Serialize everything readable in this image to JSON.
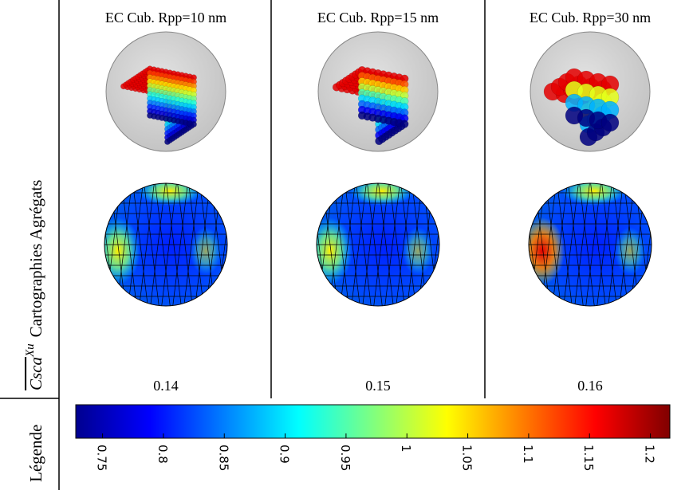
{
  "columns": [
    {
      "header": "EC Cub. Rpp=10 nm",
      "value": 0.14
    },
    {
      "header": "EC Cub. Rpp=15 nm",
      "value": 0.15
    },
    {
      "header": "EC Cub. Rpp=30 nm",
      "value": 0.16
    }
  ],
  "row_labels": {
    "maps": "Cartographies Agrégats",
    "quantity": "Csca",
    "quantity_superscript": "Xu",
    "legend": "Légende"
  },
  "colorbar": {
    "range": [
      0.728,
      1.216
    ],
    "ticks": [
      0.75,
      0.8,
      0.85,
      0.9,
      0.95,
      1,
      1.05,
      1.1,
      1.15,
      1.2
    ]
  }
}
